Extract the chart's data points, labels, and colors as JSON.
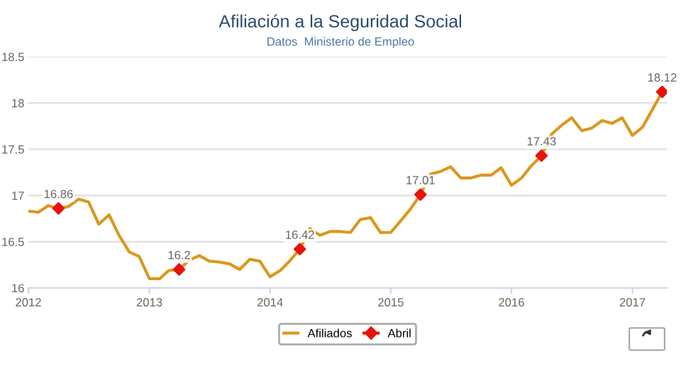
{
  "chart_data": {
    "type": "line",
    "title": "Afiliación a la Seguridad Social",
    "subtitle": "Datos  Ministerio de Empleo",
    "xlim": [
      "2012-01",
      "2017-04-15"
    ],
    "xticks": [
      "2012",
      "2013",
      "2014",
      "2015",
      "2016",
      "2017"
    ],
    "ylim": [
      16,
      18.5
    ],
    "yticks": [
      16,
      16.5,
      17,
      17.5,
      18,
      18.5
    ],
    "grid": "y",
    "legend": "bottom",
    "series": [
      {
        "name": "Afiliados",
        "color": "#d9981e",
        "marker": "none",
        "x": [
          "2012-01",
          "2012-02",
          "2012-03",
          "2012-04",
          "2012-05",
          "2012-06",
          "2012-07",
          "2012-08",
          "2012-09",
          "2012-10",
          "2012-11",
          "2012-12",
          "2013-01",
          "2013-02",
          "2013-03",
          "2013-04",
          "2013-05",
          "2013-06",
          "2013-07",
          "2013-08",
          "2013-09",
          "2013-10",
          "2013-11",
          "2013-12",
          "2014-01",
          "2014-02",
          "2014-03",
          "2014-04",
          "2014-05",
          "2014-06",
          "2014-07",
          "2014-08",
          "2014-09",
          "2014-10",
          "2014-11",
          "2014-12",
          "2015-01",
          "2015-02",
          "2015-03",
          "2015-04",
          "2015-05",
          "2015-06",
          "2015-07",
          "2015-08",
          "2015-09",
          "2015-10",
          "2015-11",
          "2015-12",
          "2016-01",
          "2016-02",
          "2016-03",
          "2016-04",
          "2016-05",
          "2016-06",
          "2016-07",
          "2016-08",
          "2016-09",
          "2016-10",
          "2016-11",
          "2016-12",
          "2017-01",
          "2017-02",
          "2017-03",
          "2017-04"
        ],
        "values": [
          16.83,
          16.82,
          16.89,
          16.86,
          16.88,
          16.96,
          16.93,
          16.69,
          16.79,
          16.57,
          16.39,
          16.34,
          16.1,
          16.1,
          16.19,
          16.2,
          16.3,
          16.35,
          16.29,
          16.28,
          16.26,
          16.2,
          16.31,
          16.29,
          16.12,
          16.19,
          16.29,
          16.42,
          16.64,
          16.57,
          16.61,
          16.61,
          16.6,
          16.74,
          16.76,
          16.6,
          16.6,
          16.73,
          16.85,
          17.01,
          17.23,
          17.26,
          17.31,
          17.19,
          17.19,
          17.22,
          17.22,
          17.3,
          17.11,
          17.19,
          17.32,
          17.43,
          17.66,
          17.76,
          17.84,
          17.7,
          17.73,
          17.81,
          17.78,
          17.84,
          17.65,
          17.74,
          17.92,
          18.12
        ]
      },
      {
        "name": "Abril",
        "color": "#e8120c",
        "type": "scatter",
        "marker": "diamond",
        "data_labels": true,
        "x": [
          "2012-04",
          "2013-04",
          "2014-04",
          "2015-04",
          "2016-04",
          "2017-04"
        ],
        "values": [
          16.86,
          16.2,
          16.42,
          17.01,
          17.43,
          18.12
        ]
      }
    ]
  }
}
